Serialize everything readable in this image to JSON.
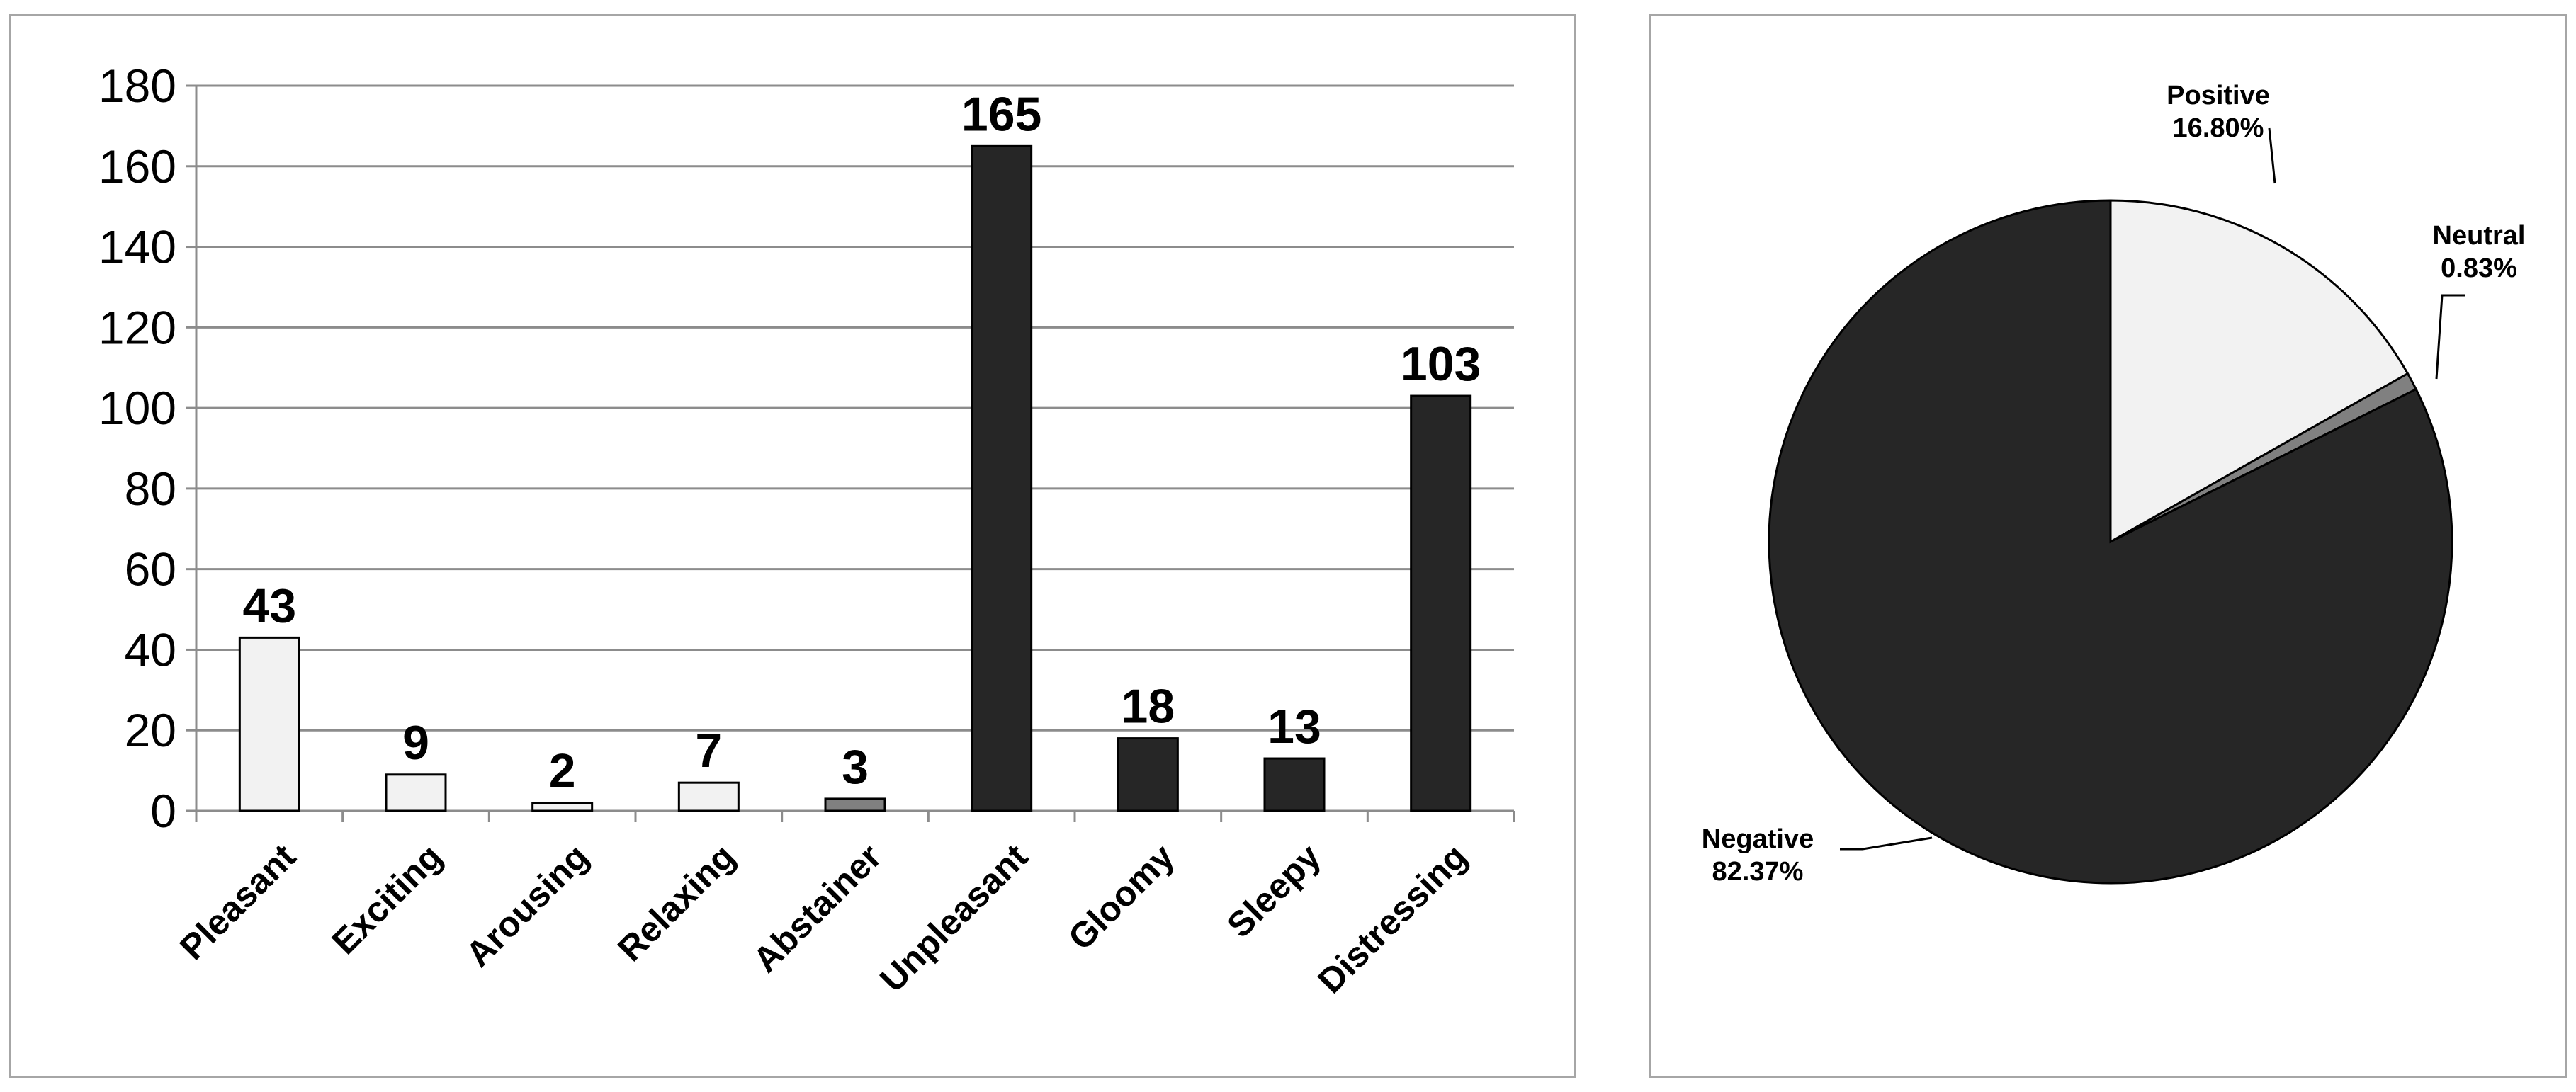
{
  "chart_data": [
    {
      "type": "bar",
      "categories": [
        "Pleasant",
        "Exciting",
        "Arousing",
        "Relaxing",
        "Abstainer",
        "Unpleasant",
        "Gloomy",
        "Sleepy",
        "Distressing"
      ],
      "values": [
        43,
        9,
        2,
        7,
        3,
        165,
        18,
        13,
        103
      ],
      "value_labels": [
        "43",
        "9",
        "2",
        "7",
        "3",
        "165",
        "18",
        "13",
        "103"
      ],
      "colors": [
        "#f2f2f2",
        "#f2f2f2",
        "#f2f2f2",
        "#f2f2f2",
        "#808080",
        "#262626",
        "#262626",
        "#262626",
        "#262626"
      ],
      "yticks": [
        0,
        20,
        40,
        60,
        80,
        100,
        120,
        140,
        160,
        180
      ],
      "ytick_labels": [
        "0",
        "20",
        "40",
        "60",
        "80",
        "100",
        "120",
        "140",
        "160",
        "180"
      ],
      "ylim": [
        0,
        180
      ],
      "grid": true,
      "title": "",
      "xlabel": "",
      "ylabel": ""
    },
    {
      "type": "pie",
      "slices": [
        {
          "name": "Positive",
          "value": 16.8,
          "label": "16.80%",
          "color": "#f2f2f2"
        },
        {
          "name": "Neutral",
          "value": 0.83,
          "label": "0.83%",
          "color": "#808080"
        },
        {
          "name": "Negative",
          "value": 82.37,
          "label": "82.37%",
          "color": "#262626"
        }
      ],
      "start": "12 o'clock",
      "direction": "clockwise"
    }
  ]
}
